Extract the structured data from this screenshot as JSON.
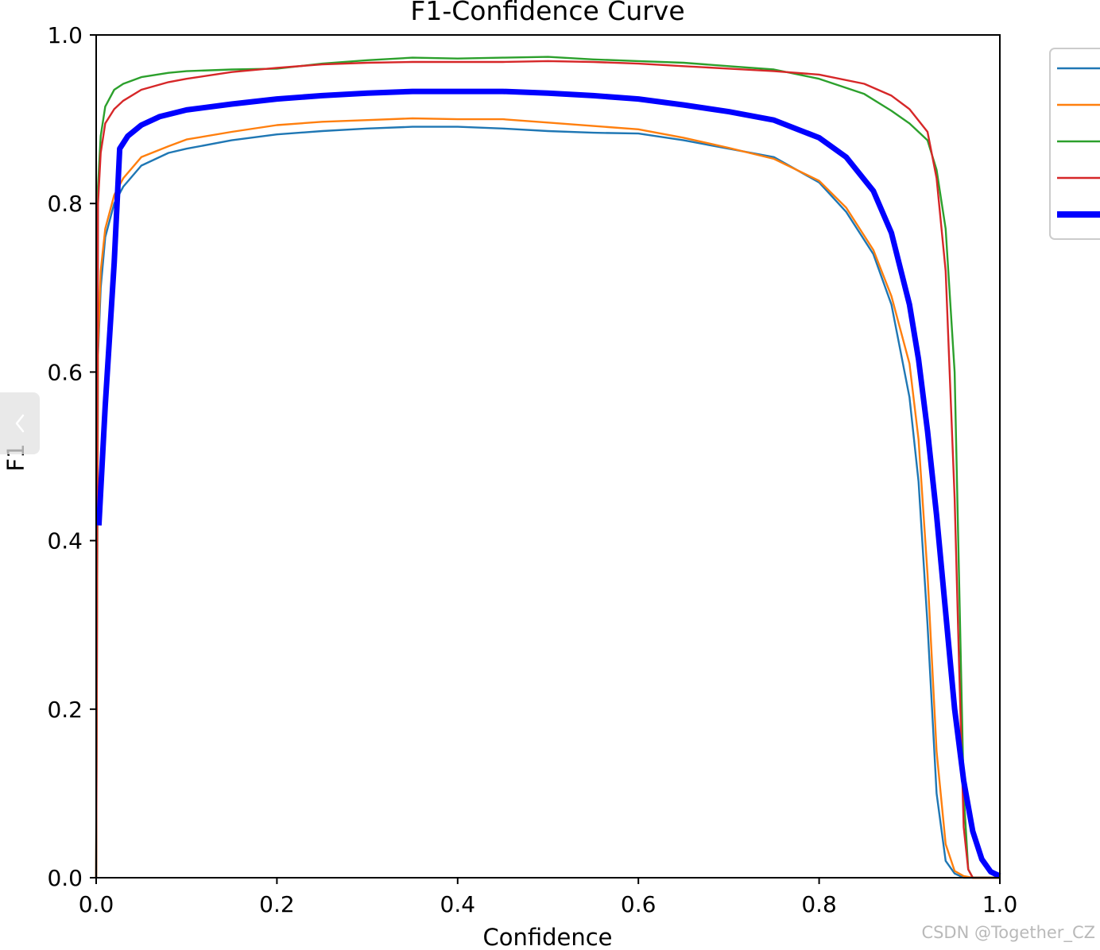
{
  "chart_data": {
    "type": "line",
    "title": "F1-Confidence Curve",
    "xlabel": "Confidence",
    "ylabel": "F1",
    "xlim": [
      0,
      1
    ],
    "ylim": [
      0,
      1
    ],
    "xticks": [
      "0.0",
      "0.2",
      "0.4",
      "0.6",
      "0.8",
      "1.0"
    ],
    "yticks": [
      "0.0",
      "0.2",
      "0.4",
      "0.6",
      "0.8",
      "1.0"
    ],
    "grid": false,
    "legend_position": "upper-right-outside",
    "series": [
      {
        "color": "#1f77b4",
        "width": "thin",
        "x": [
          0.0,
          0.002,
          0.005,
          0.01,
          0.02,
          0.03,
          0.05,
          0.08,
          0.1,
          0.15,
          0.2,
          0.25,
          0.3,
          0.35,
          0.4,
          0.45,
          0.5,
          0.55,
          0.6,
          0.65,
          0.7,
          0.75,
          0.8,
          0.83,
          0.86,
          0.88,
          0.9,
          0.91,
          0.92,
          0.93,
          0.94,
          0.95,
          0.96,
          0.97,
          1.0
        ],
        "y": [
          0.0,
          0.62,
          0.7,
          0.76,
          0.8,
          0.82,
          0.845,
          0.86,
          0.865,
          0.875,
          0.882,
          0.886,
          0.889,
          0.891,
          0.891,
          0.889,
          0.886,
          0.884,
          0.883,
          0.875,
          0.865,
          0.855,
          0.825,
          0.79,
          0.74,
          0.68,
          0.57,
          0.47,
          0.3,
          0.1,
          0.02,
          0.005,
          0.0,
          0.0,
          0.0
        ]
      },
      {
        "color": "#ff7f0e",
        "width": "thin",
        "x": [
          0.0,
          0.002,
          0.005,
          0.01,
          0.02,
          0.03,
          0.05,
          0.08,
          0.1,
          0.15,
          0.2,
          0.25,
          0.3,
          0.35,
          0.4,
          0.45,
          0.5,
          0.55,
          0.6,
          0.65,
          0.7,
          0.75,
          0.8,
          0.83,
          0.86,
          0.88,
          0.9,
          0.91,
          0.92,
          0.93,
          0.94,
          0.95,
          0.96,
          0.97,
          1.0
        ],
        "y": [
          0.0,
          0.63,
          0.72,
          0.77,
          0.81,
          0.83,
          0.855,
          0.868,
          0.876,
          0.885,
          0.893,
          0.897,
          0.899,
          0.901,
          0.9,
          0.9,
          0.896,
          0.892,
          0.888,
          0.878,
          0.866,
          0.853,
          0.827,
          0.795,
          0.745,
          0.69,
          0.61,
          0.52,
          0.36,
          0.15,
          0.04,
          0.008,
          0.002,
          0.0,
          0.0
        ]
      },
      {
        "color": "#2ca02c",
        "width": "thin",
        "x": [
          0.0,
          0.002,
          0.005,
          0.01,
          0.02,
          0.03,
          0.05,
          0.08,
          0.1,
          0.15,
          0.2,
          0.25,
          0.3,
          0.35,
          0.4,
          0.45,
          0.5,
          0.55,
          0.6,
          0.65,
          0.7,
          0.75,
          0.8,
          0.85,
          0.88,
          0.9,
          0.92,
          0.93,
          0.94,
          0.95,
          0.955,
          0.96,
          0.965,
          0.97,
          0.98,
          1.0
        ],
        "y": [
          0.0,
          0.82,
          0.88,
          0.915,
          0.935,
          0.942,
          0.95,
          0.955,
          0.957,
          0.959,
          0.96,
          0.966,
          0.97,
          0.973,
          0.972,
          0.973,
          0.974,
          0.971,
          0.969,
          0.967,
          0.963,
          0.959,
          0.948,
          0.93,
          0.91,
          0.895,
          0.875,
          0.84,
          0.77,
          0.6,
          0.35,
          0.1,
          0.01,
          0.0,
          0.0,
          0.0
        ]
      },
      {
        "color": "#d62728",
        "width": "thin",
        "x": [
          0.0,
          0.002,
          0.005,
          0.01,
          0.02,
          0.03,
          0.05,
          0.08,
          0.1,
          0.15,
          0.2,
          0.25,
          0.3,
          0.35,
          0.4,
          0.45,
          0.5,
          0.55,
          0.6,
          0.65,
          0.7,
          0.75,
          0.8,
          0.85,
          0.88,
          0.9,
          0.92,
          0.93,
          0.94,
          0.95,
          0.955,
          0.96,
          0.965,
          0.97,
          0.98,
          1.0
        ],
        "y": [
          0.0,
          0.8,
          0.86,
          0.895,
          0.912,
          0.922,
          0.935,
          0.944,
          0.948,
          0.956,
          0.961,
          0.965,
          0.967,
          0.968,
          0.968,
          0.968,
          0.969,
          0.968,
          0.966,
          0.963,
          0.96,
          0.957,
          0.953,
          0.942,
          0.928,
          0.912,
          0.885,
          0.83,
          0.72,
          0.45,
          0.25,
          0.06,
          0.01,
          0.0,
          0.0,
          0.0
        ]
      },
      {
        "color": "#0000ff",
        "width": "thick",
        "x": [
          0.003,
          0.01,
          0.02,
          0.026,
          0.035,
          0.05,
          0.07,
          0.1,
          0.15,
          0.2,
          0.25,
          0.3,
          0.35,
          0.4,
          0.45,
          0.5,
          0.55,
          0.6,
          0.65,
          0.7,
          0.75,
          0.8,
          0.83,
          0.86,
          0.88,
          0.9,
          0.91,
          0.92,
          0.93,
          0.94,
          0.95,
          0.96,
          0.97,
          0.98,
          0.99,
          1.0
        ],
        "y": [
          0.418,
          0.56,
          0.73,
          0.865,
          0.88,
          0.893,
          0.903,
          0.911,
          0.918,
          0.924,
          0.928,
          0.931,
          0.933,
          0.933,
          0.933,
          0.931,
          0.928,
          0.924,
          0.917,
          0.909,
          0.899,
          0.878,
          0.855,
          0.815,
          0.765,
          0.68,
          0.615,
          0.53,
          0.43,
          0.315,
          0.2,
          0.115,
          0.055,
          0.022,
          0.007,
          0.002
        ]
      }
    ]
  },
  "watermark": "CSDN @Together_CZ",
  "side_tab_icon": "chevron-left-icon"
}
